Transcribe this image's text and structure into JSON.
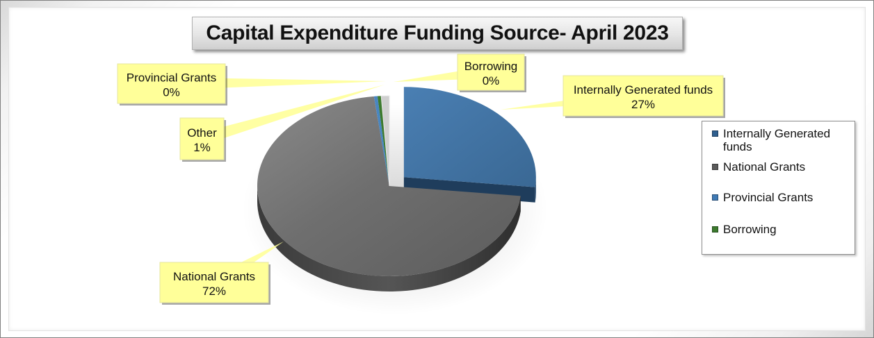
{
  "chart_data": {
    "type": "pie",
    "title": "Capital Expenditure Funding Source- April 2023",
    "slices": [
      {
        "label": "Internally Generated funds",
        "value": 27,
        "display": "27%",
        "color": "#3f6f9f"
      },
      {
        "label": "National Grants",
        "value": 72,
        "display": "72%",
        "color": "#6b6b6b"
      },
      {
        "label": "Provincial Grants",
        "value": 0,
        "display": "0%",
        "color": "#4a86c0"
      },
      {
        "label": "Borrowing",
        "value": 0,
        "display": "0%",
        "color": "#3c7a2e"
      },
      {
        "label": "Other",
        "value": 1,
        "display": "1%",
        "color": "#c8c8c8"
      }
    ],
    "legend": {
      "position": "right",
      "items": [
        {
          "label": "Internally Generated funds",
          "color": "#2f5f8f"
        },
        {
          "label": "National Grants",
          "color": "#5a5a5a"
        },
        {
          "label": "Provincial Grants",
          "color": "#3f7ab5"
        },
        {
          "label": "Borrowing",
          "color": "#3c7a2e"
        }
      ]
    }
  }
}
